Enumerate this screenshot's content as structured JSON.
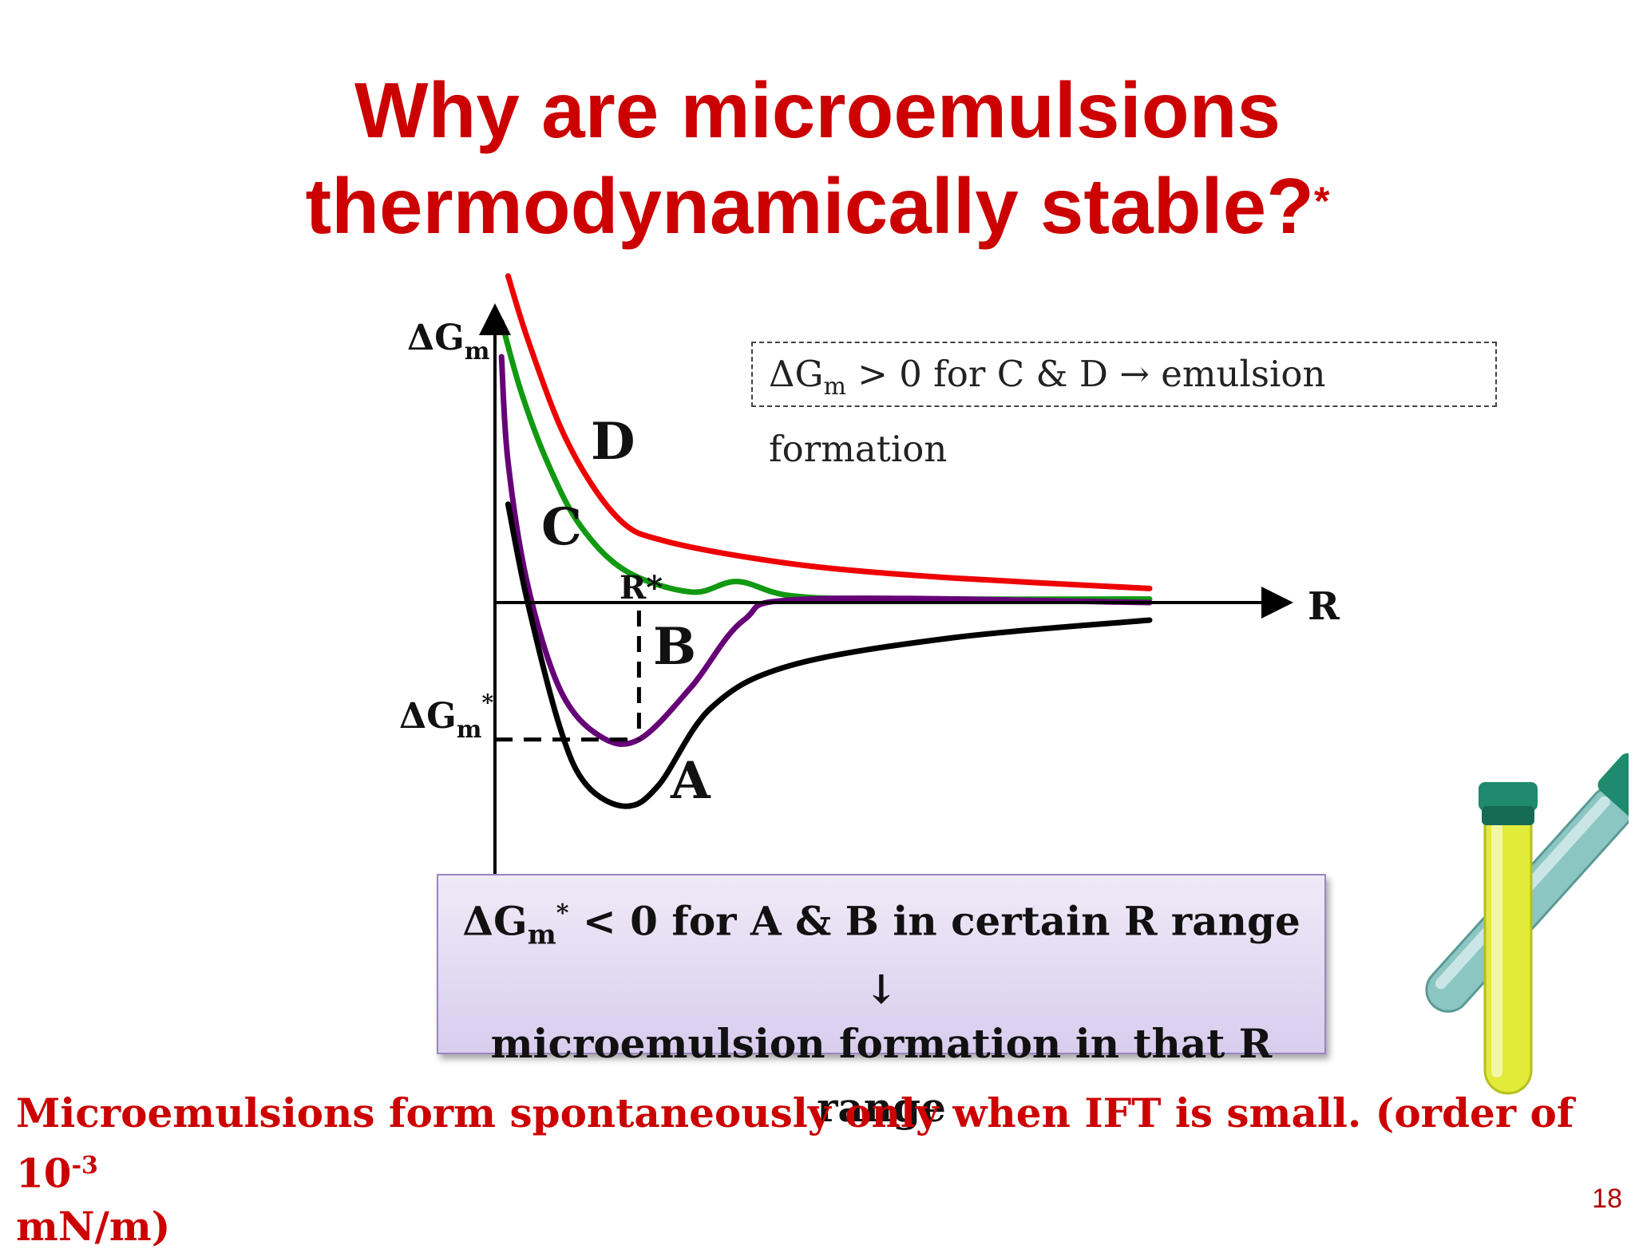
{
  "slide": {
    "title_line1": "Why are microemulsions",
    "title_line2": "thermodynamically stable?",
    "title_footnote_mark": "*",
    "page_number": "18"
  },
  "note_box": {
    "delta": "ΔG",
    "sub": "m",
    "rest": " > 0 for C & D → emulsion formation"
  },
  "result_box": {
    "line1_delta": "ΔG",
    "line1_sub": "m",
    "line1_sup": "*",
    "line1_rest": " < 0 for A & B in certain R range",
    "arrow": "↓",
    "line3": "microemulsion formation in that R range"
  },
  "footer_note": {
    "text": "Microemulsions form spontaneously only when IFT is small. (order of 10",
    "exponent": "-3",
    "text_end": " mN/m)"
  },
  "chart_data": {
    "type": "line",
    "xlabel": "R",
    "ylabel_main": "ΔG",
    "ylabel_sub": "m",
    "y_marker_main": "ΔG",
    "y_marker_sub": "m",
    "y_marker_sup": "*",
    "x_marker": "R*",
    "x_marker_value": 0.22,
    "y_marker_value": -0.39,
    "grid": false,
    "legend": "none (curves labeled directly)",
    "series": [
      {
        "name": "D",
        "color": "#ee0000",
        "points": [
          [
            0.02,
            0.93
          ],
          [
            0.05,
            0.75
          ],
          [
            0.1,
            0.5
          ],
          [
            0.15,
            0.33
          ],
          [
            0.2,
            0.22
          ],
          [
            0.25,
            0.18
          ],
          [
            0.35,
            0.14
          ],
          [
            0.5,
            0.1
          ],
          [
            0.7,
            0.07
          ],
          [
            1.0,
            0.04
          ]
        ]
      },
      {
        "name": "C",
        "color": "#119911",
        "points": [
          [
            0.01,
            0.8
          ],
          [
            0.04,
            0.6
          ],
          [
            0.08,
            0.4
          ],
          [
            0.13,
            0.22
          ],
          [
            0.2,
            0.09
          ],
          [
            0.3,
            0.03
          ],
          [
            0.37,
            0.06
          ],
          [
            0.45,
            0.02
          ],
          [
            0.6,
            0.01
          ],
          [
            1.0,
            0.01
          ]
        ]
      },
      {
        "name": "B",
        "color": "#660077",
        "points": [
          [
            0.01,
            0.7
          ],
          [
            0.02,
            0.4
          ],
          [
            0.05,
            0.05
          ],
          [
            0.1,
            -0.25
          ],
          [
            0.16,
            -0.38
          ],
          [
            0.22,
            -0.39
          ],
          [
            0.3,
            -0.24
          ],
          [
            0.38,
            -0.05
          ],
          [
            0.48,
            0.01
          ],
          [
            1.0,
            0.0
          ]
        ]
      },
      {
        "name": "A",
        "color": "#000000",
        "points": [
          [
            0.02,
            0.28
          ],
          [
            0.05,
            0.0
          ],
          [
            0.1,
            -0.36
          ],
          [
            0.14,
            -0.52
          ],
          [
            0.2,
            -0.58
          ],
          [
            0.25,
            -0.52
          ],
          [
            0.33,
            -0.3
          ],
          [
            0.45,
            -0.18
          ],
          [
            0.7,
            -0.1
          ],
          [
            1.0,
            -0.05
          ]
        ]
      }
    ]
  }
}
